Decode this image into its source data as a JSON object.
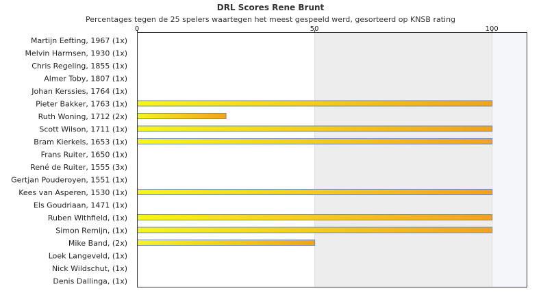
{
  "chart_data": {
    "type": "bar",
    "orientation": "horizontal",
    "title": "DRL Scores Rene Brunt",
    "subtitle": "Percentages tegen de 25 spelers waartegen het meest gespeeld werd, gesorteerd op KNSB rating",
    "categories": [
      "Martijn Eefting, 1967 (1x)",
      "Melvin Harmsen, 1930 (1x)",
      "Chris Regeling, 1855 (1x)",
      "Almer Toby, 1807 (1x)",
      "Johan Kerssies, 1764 (1x)",
      "Pieter Bakker, 1763 (1x)",
      "Ruth Woning, 1712 (2x)",
      "Scott Wilson, 1711 (1x)",
      "Bram Kierkels, 1653 (1x)",
      "Frans Ruiter, 1650 (1x)",
      "René de Ruiter, 1555 (3x)",
      "Gertjan Pouderoyen, 1551 (1x)",
      "Kees van Asperen, 1530 (1x)",
      "Els Goudriaan, 1471 (1x)",
      "Ruben Withfield,  (1x)",
      "Simon Remijn,  (1x)",
      "Mike Band,  (2x)",
      "Loek Langeveld,  (1x)",
      "Nick Wildschut,  (1x)",
      "Denis Dallinga,  (1x)"
    ],
    "values": [
      0,
      0,
      0,
      0,
      0,
      100,
      25,
      100,
      100,
      0,
      0,
      0,
      100,
      0,
      100,
      100,
      50,
      0,
      0,
      0
    ],
    "xlim": [
      0,
      110
    ],
    "xticks": [
      "0",
      "50",
      "100"
    ],
    "tick_values": [
      0,
      50,
      100
    ],
    "bands": [
      {
        "from": 50,
        "to": 100,
        "color": "#ededed"
      },
      {
        "from": 100,
        "to": 110,
        "color": "#f4f6fa"
      }
    ],
    "colors": {
      "bar_start": "#f5f51e",
      "bar_end": "#f2a21e",
      "bar_border": "#6b8cb5",
      "plot_border": "#333333",
      "band_edge": "#dddddd"
    },
    "grid": false,
    "legend": "none"
  }
}
